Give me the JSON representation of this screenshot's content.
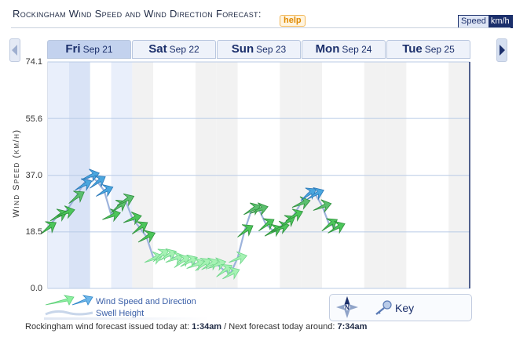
{
  "header": {
    "title": "Rockingham Wind Speed and Wind Direction Forecast:",
    "help_label": "help",
    "speed_label": "Speed",
    "unit_label": "km/h"
  },
  "tabs": [
    {
      "dow": "Fri",
      "date": "Sep 21",
      "active": true
    },
    {
      "dow": "Sat",
      "date": "Sep 22",
      "active": false
    },
    {
      "dow": "Sun",
      "date": "Sep 23",
      "active": false
    },
    {
      "dow": "Mon",
      "date": "Sep 24",
      "active": false
    },
    {
      "dow": "Tue",
      "date": "Sep 25",
      "active": false
    }
  ],
  "chart_data": {
    "type": "line",
    "ylabel": "Wind Speed (km/h)",
    "ylim": [
      0,
      74.1
    ],
    "y_ticks": [
      "74.1",
      "55.6",
      "37.0",
      "18.5",
      "0.0"
    ],
    "y_tick_values": [
      74.1,
      55.6,
      37.0,
      18.5,
      0.0
    ],
    "x_unit": "hours from start of Fri Sep 21",
    "xlim": [
      0,
      120
    ],
    "grid": true,
    "series": [
      {
        "points": [
          [
            0,
            20
          ],
          [
            3,
            24
          ],
          [
            5,
            25
          ],
          [
            8,
            30
          ],
          [
            10,
            34
          ],
          [
            12,
            37
          ],
          [
            14,
            35
          ],
          [
            16,
            32
          ],
          [
            18,
            24
          ],
          [
            20,
            27
          ],
          [
            22,
            29
          ],
          [
            24,
            23
          ],
          [
            26,
            20
          ],
          [
            28,
            17
          ],
          [
            30,
            10
          ],
          [
            32,
            11
          ],
          [
            34,
            11
          ],
          [
            36,
            10
          ],
          [
            38,
            9
          ],
          [
            40,
            9
          ],
          [
            42,
            8
          ],
          [
            44,
            8
          ],
          [
            46,
            8
          ],
          [
            48,
            8
          ],
          [
            50,
            6
          ],
          [
            52,
            5
          ],
          [
            54,
            10
          ],
          [
            56,
            19
          ],
          [
            58,
            26
          ],
          [
            60,
            26
          ],
          [
            62,
            21
          ],
          [
            64,
            19
          ],
          [
            66,
            20
          ],
          [
            68,
            22
          ],
          [
            70,
            24
          ],
          [
            72,
            28
          ],
          [
            74,
            31
          ],
          [
            76,
            31
          ],
          [
            78,
            27
          ],
          [
            80,
            21
          ],
          [
            82,
            20
          ]
        ]
      }
    ],
    "arrow_colors": [
      "#7ee87a",
      "#3cb44a",
      "#5aa8e0",
      "#2f86c9"
    ],
    "shaded_daylight_band_hours": [
      [
        0,
        24
      ],
      [
        24,
        48
      ],
      [
        48,
        72
      ],
      [
        72,
        96
      ],
      [
        96,
        120
      ]
    ]
  },
  "legend": {
    "wind_label": "Wind Speed and Direction",
    "swell_label": "Swell Height",
    "key_label": "Key",
    "compass_label": "N"
  },
  "footer": {
    "issued_prefix": "Rockingham wind forecast issued today at:",
    "issued_time": "1:34am",
    "next_prefix": "/ Next forecast today around:",
    "next_time": "7:34am"
  }
}
